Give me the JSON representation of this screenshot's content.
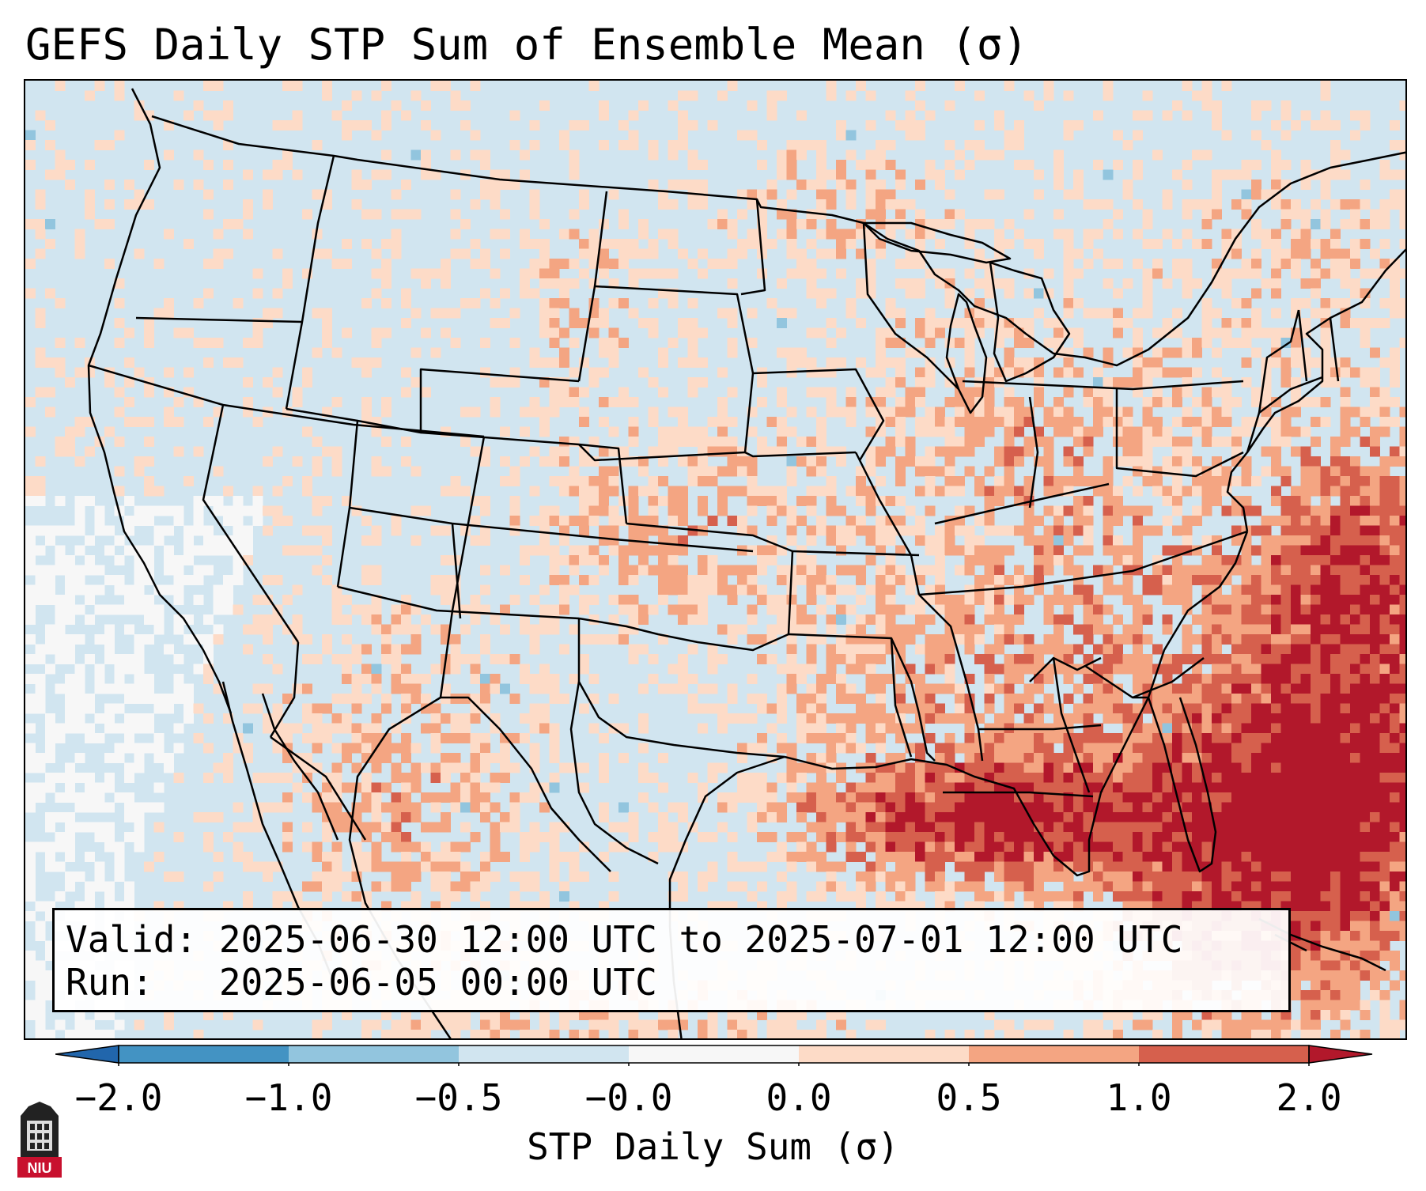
{
  "title": "GEFS Daily STP Sum of Ensemble Mean (σ)",
  "info": {
    "valid_label": "Valid:",
    "valid_range": "2025-06-30 12:00 UTC to 2025-07-01 12:00 UTC",
    "run_label": "Run:",
    "run_time": "2025-06-05 00:00 UTC"
  },
  "colorbar": {
    "label": "STP Daily Sum (σ)",
    "ticks": [
      "−2.0",
      "−1.0",
      "−0.5",
      "−0.0",
      "0.0",
      "0.5",
      "1.0",
      "2.0"
    ],
    "bins": [
      {
        "from": -2.0,
        "to": -1.0,
        "color": "#4393c3"
      },
      {
        "from": -1.0,
        "to": -0.5,
        "color": "#92c5de"
      },
      {
        "from": -0.5,
        "to": -0.0,
        "color": "#d1e5f0"
      },
      {
        "from": -0.0,
        "to": 0.0,
        "color": "#f7f7f7"
      },
      {
        "from": 0.0,
        "to": 0.5,
        "color": "#fddbc7"
      },
      {
        "from": 0.5,
        "to": 1.0,
        "color": "#f4a582"
      },
      {
        "from": 1.0,
        "to": 2.0,
        "color": "#d6604d"
      }
    ],
    "under_color": "#2166ac",
    "over_color": "#b2182b"
  },
  "map": {
    "background_color": "#d1e5f0",
    "border_color": "#000000"
  },
  "logo": {
    "text": "NIU"
  }
}
